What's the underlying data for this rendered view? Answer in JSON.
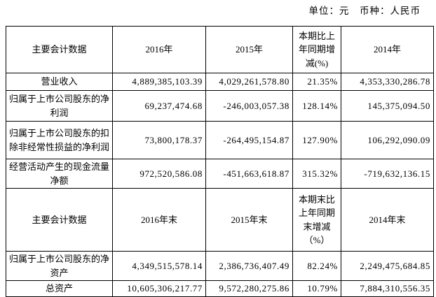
{
  "note": {
    "text": "单位：元　币种：人民币"
  },
  "table1": {
    "headers": [
      "主要会计数据",
      "2016年",
      "2015年",
      "本期比上年同期增减(%)",
      "2014年"
    ],
    "rows": [
      {
        "label": "营业收入",
        "y2016": "4,889,385,103.39",
        "y2015": "4,029,261,578.80",
        "change": "21.35%",
        "y2014": "4,353,330,286.78"
      },
      {
        "label": "归属于上市公司股东的净利润",
        "y2016": "69,237,474.68",
        "y2015": "-246,003,057.38",
        "change": "128.14%",
        "y2014": "145,375,094.50"
      },
      {
        "label": "归属于上市公司股东的扣除非经常性损益的净利润",
        "y2016": "73,800,178.37",
        "y2015": "-264,495,154.87",
        "change": "127.90%",
        "y2014": "106,292,090.09"
      },
      {
        "label": "经营活动产生的现金流量净额",
        "y2016": "972,520,586.08",
        "y2015": "-451,663,618.87",
        "change": "315.32%",
        "y2014": "-719,632,136.15"
      }
    ]
  },
  "table2": {
    "headers": [
      "主要会计数据",
      "2016年末",
      "2015年末",
      "本期末比上年同期末增减（%）",
      "2014年末"
    ],
    "rows": [
      {
        "label": "归属于上市公司股东的净资产",
        "y2016": "4,349,515,578.14",
        "y2015": "2,386,736,407.49",
        "change": "82.24%",
        "y2014": "2,249,475,684.85"
      },
      {
        "label": "总资产",
        "y2016": "10,605,306,217.77",
        "y2015": "9,572,280,275.86",
        "change": "10.79%",
        "y2014": "7,884,310,556.35"
      }
    ]
  }
}
